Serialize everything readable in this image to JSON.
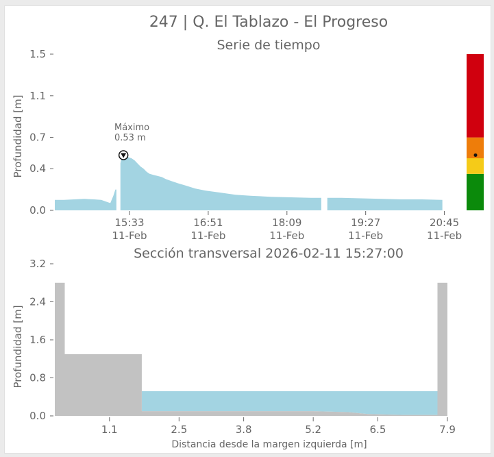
{
  "page_title": "247 | Q. El Tablazo - El Progreso",
  "colors": {
    "water": "#a3d4e2",
    "terrain": "#c2c2c2",
    "text": "#666666",
    "level_red": "#d0000e",
    "level_orange": "#ee7d0a",
    "level_yellow": "#f5cb18",
    "level_green": "#0b8a0b"
  },
  "chart_data": [
    {
      "type": "area",
      "title": "Serie de tiempo",
      "xlabel": "",
      "ylabel": "Profundidad [m]",
      "ylim": [
        0,
        1.5
      ],
      "yticks": [
        "0.0",
        "0.4",
        "0.7",
        "1.1",
        "1.5"
      ],
      "xticks": [
        {
          "time": "15:33",
          "date": "11-Feb"
        },
        {
          "time": "16:51",
          "date": "11-Feb"
        },
        {
          "time": "18:09",
          "date": "11-Feb"
        },
        {
          "time": "19:27",
          "date": "11-Feb"
        },
        {
          "time": "20:45",
          "date": "11-Feb"
        }
      ],
      "x_unit": "minutes from 15:33 on 11-Feb",
      "segments": [
        [
          [
            -74,
            0.1
          ],
          [
            -65,
            0.1
          ],
          [
            -55,
            0.105
          ],
          [
            -45,
            0.11
          ],
          [
            -35,
            0.105
          ],
          [
            -28,
            0.1
          ],
          [
            -22,
            0.08
          ],
          [
            -19,
            0.07
          ],
          [
            -16,
            0.14
          ],
          [
            -14,
            0.2
          ],
          [
            -13,
            0.2
          ]
        ],
        [
          [
            -9,
            0.45
          ],
          [
            -8,
            0.5
          ],
          [
            -6,
            0.53
          ],
          [
            -4,
            0.52
          ],
          [
            -1,
            0.51
          ],
          [
            2,
            0.5
          ],
          [
            5,
            0.48
          ],
          [
            8,
            0.45
          ],
          [
            11,
            0.42
          ],
          [
            14,
            0.4
          ],
          [
            17,
            0.37
          ],
          [
            20,
            0.35
          ],
          [
            24,
            0.34
          ],
          [
            28,
            0.33
          ],
          [
            32,
            0.32
          ],
          [
            36,
            0.3
          ],
          [
            42,
            0.28
          ],
          [
            48,
            0.26
          ],
          [
            55,
            0.24
          ],
          [
            65,
            0.21
          ],
          [
            75,
            0.19
          ],
          [
            90,
            0.17
          ],
          [
            105,
            0.15
          ],
          [
            120,
            0.14
          ],
          [
            140,
            0.13
          ],
          [
            160,
            0.125
          ],
          [
            180,
            0.12
          ],
          [
            190,
            0.12
          ]
        ],
        [
          [
            196,
            0.12
          ],
          [
            210,
            0.12
          ],
          [
            230,
            0.115
          ],
          [
            250,
            0.11
          ],
          [
            270,
            0.105
          ],
          [
            290,
            0.105
          ],
          [
            310,
            0.1
          ]
        ]
      ],
      "max_annotation": {
        "label": "Máximo",
        "value_text": "0.53 m",
        "time": -6,
        "value": 0.53
      },
      "level_bar": {
        "bands": [
          {
            "from": 0,
            "to": 0.35,
            "color": "#0b8a0b"
          },
          {
            "from": 0.35,
            "to": 0.5,
            "color": "#f5cb18"
          },
          {
            "from": 0.5,
            "to": 0.7,
            "color": "#ee7d0a"
          },
          {
            "from": 0.7,
            "to": 1.5,
            "color": "#d0000e"
          }
        ],
        "current_value": 0.53
      }
    },
    {
      "type": "area",
      "title": "Sección transversal 2026-02-11 15:27:00",
      "xlabel": "Distancia desde la margen izquierda [m]",
      "ylabel": "Profundidad [m]",
      "xlim": [
        0,
        7.9
      ],
      "ylim": [
        0,
        3.2
      ],
      "xticks": [
        "1.1",
        "2.5",
        "3.8",
        "5.2",
        "6.5",
        "7.9"
      ],
      "yticks": [
        "0.0",
        "0.8",
        "1.6",
        "2.4",
        "3.2"
      ],
      "terrain_profile": [
        [
          0,
          2.8
        ],
        [
          0.2,
          2.8
        ],
        [
          0.2,
          1.3
        ],
        [
          1.75,
          1.3
        ],
        [
          1.75,
          0.1
        ],
        [
          2.5,
          0.1
        ],
        [
          3.8,
          0.1
        ],
        [
          5.2,
          0.1
        ],
        [
          5.9,
          0.08
        ],
        [
          6.3,
          0.04
        ],
        [
          7.0,
          0.02
        ],
        [
          7.7,
          0.02
        ],
        [
          7.7,
          2.8
        ],
        [
          7.9,
          2.8
        ]
      ],
      "water_level": 0.52,
      "water_extent": [
        1.75,
        7.7
      ]
    }
  ]
}
